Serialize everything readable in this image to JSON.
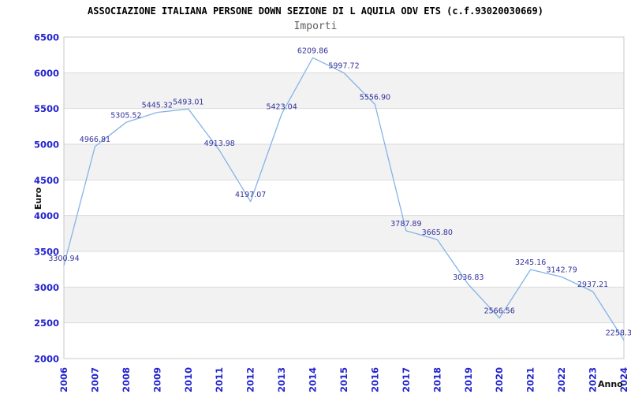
{
  "header": {
    "title": "ASSOCIAZIONE ITALIANA PERSONE DOWN SEZIONE DI L AQUILA ODV ETS (c.f.93020030669)",
    "subtitle": "Importi"
  },
  "chart_data": {
    "type": "line",
    "title": "ASSOCIAZIONE ITALIANA PERSONE DOWN SEZIONE DI L AQUILA ODV ETS (c.f.93020030669)",
    "subtitle": "Importi",
    "xlabel": "Anno",
    "ylabel": "Euro",
    "x": [
      2006,
      2007,
      2008,
      2009,
      2010,
      2011,
      2012,
      2013,
      2014,
      2015,
      2016,
      2017,
      2018,
      2019,
      2020,
      2021,
      2022,
      2023,
      2024
    ],
    "values": [
      3300.94,
      4966.81,
      5305.52,
      5445.32,
      5493.01,
      4913.98,
      4197.07,
      5423.04,
      6209.86,
      5997.72,
      5556.9,
      3787.89,
      3665.8,
      3036.83,
      2566.56,
      3245.16,
      3142.79,
      2937.21,
      2258.3
    ],
    "point_labels": [
      "3300.94",
      "4966.81",
      "5305.52",
      "5445.32",
      "5493.01",
      "4913.98",
      "4197.07",
      "5423.04",
      "6209.86",
      "5997.72",
      "5556.90",
      "3787.89",
      "3665.80",
      "3036.83",
      "2566.56",
      "3245.16",
      "3142.79",
      "2937.21",
      "2258.3"
    ],
    "y_ticks": [
      6500,
      6000,
      5500,
      5000,
      4500,
      4000,
      3500,
      3000,
      2500,
      2000
    ],
    "ylim": [
      2000,
      6500
    ],
    "grid": "horizontal-only",
    "bands": "alternating",
    "legend": "none",
    "colors": {
      "line": "#85b3e8",
      "tick_label": "#2323ce",
      "data_label": "#32329b",
      "band": "#f2f2f2",
      "gridline": "#dbdbdb",
      "plot_border": "#c9c9c9",
      "title": "#000000",
      "subtitle": "#5e5e5e",
      "axis_title": "#111111",
      "background": "#ffffff"
    }
  }
}
